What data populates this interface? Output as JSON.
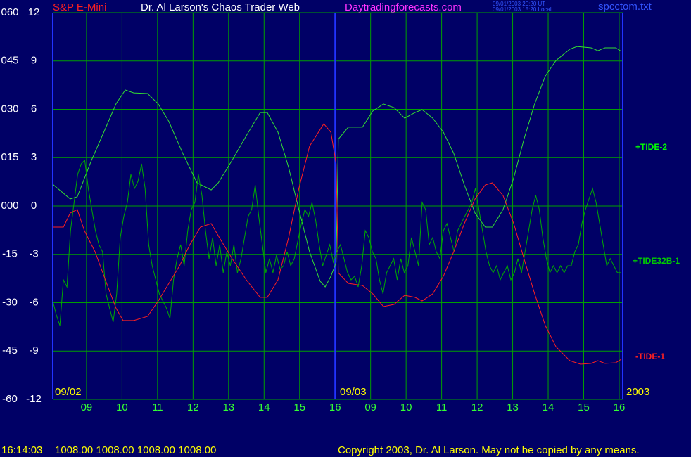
{
  "chart_data": {
    "type": "line",
    "title": "Dr. Al Larson's Chaos Trader Web",
    "subtitle": "S&P E-Mini",
    "site": "Daytradingforecasts.com",
    "timestamps": [
      "09/01/2003 20:20 UT",
      "09/01/2003 15:20 Local"
    ],
    "file": "spcctom.txt",
    "dates": [
      "09/02",
      "09/03",
      "2003"
    ],
    "status": [
      "16:14:03",
      "1008.00 1008.00 1008.00 1008.00"
    ],
    "copyright": "Copyright 2003, Dr. Al Larson. May not be copied by any means.",
    "xlim": [
      0.05,
      16.1
    ],
    "xticks": [
      {
        "value": 1,
        "label": "09"
      },
      {
        "value": 2,
        "label": "10"
      },
      {
        "value": 3,
        "label": "11"
      },
      {
        "value": 4,
        "label": "12"
      },
      {
        "value": 5,
        "label": "13"
      },
      {
        "value": 6,
        "label": "14"
      },
      {
        "value": 7,
        "label": "15"
      },
      {
        "value": 8,
        "label": "16"
      },
      {
        "value": 9,
        "label": "09"
      },
      {
        "value": 10,
        "label": "10"
      },
      {
        "value": 11,
        "label": "11"
      },
      {
        "value": 12,
        "label": "12"
      },
      {
        "value": 13,
        "label": "13"
      },
      {
        "value": 14,
        "label": "14"
      },
      {
        "value": 15,
        "label": "15"
      },
      {
        "value": 16,
        "label": "16"
      }
    ],
    "ylim": [
      -12,
      12
    ],
    "yticks": [
      12,
      9,
      6,
      3,
      0,
      -3,
      -6,
      -9,
      -12
    ],
    "y2lim": [
      -60,
      60
    ],
    "y2ticks": [
      {
        "value": 60,
        "label": "060"
      },
      {
        "value": 45,
        "label": "045"
      },
      {
        "value": 30,
        "label": "030"
      },
      {
        "value": 15,
        "label": "015"
      },
      {
        "value": 0,
        "label": "000"
      },
      -15,
      -30,
      -45,
      -60
    ],
    "grid": true,
    "series": [
      {
        "name": "+TIDE-2",
        "color": "#33dd33",
        "x": [
          0.05,
          0.54,
          0.74,
          1.14,
          1.53,
          1.83,
          2.09,
          2.33,
          2.72,
          3.02,
          3.32,
          3.71,
          4.11,
          4.51,
          4.71,
          5.1,
          5.5,
          5.89,
          6.09,
          6.39,
          6.69,
          6.98,
          7.28,
          7.58,
          7.72,
          7.88,
          8.03,
          8.09,
          8.37,
          8.77,
          9.06,
          9.36,
          9.66,
          9.96,
          10.25,
          10.45,
          10.75,
          11.05,
          11.34,
          11.64,
          11.94,
          12.23,
          12.43,
          12.73,
          13.03,
          13.32,
          13.62,
          13.92,
          14.22,
          14.61,
          14.81,
          15.21,
          15.4,
          15.6,
          15.9,
          16.06
        ],
        "values": [
          1.35,
          0.44,
          0.57,
          2.84,
          4.8,
          6.33,
          7.2,
          7.02,
          6.98,
          6.33,
          5.24,
          3.27,
          1.44,
          1.0,
          1.44,
          2.84,
          4.36,
          5.8,
          5.8,
          4.58,
          2.4,
          -0.22,
          -2.84,
          -4.67,
          -5.02,
          -4.36,
          -3.5,
          4.15,
          4.89,
          4.89,
          5.89,
          6.33,
          6.11,
          5.45,
          5.8,
          5.98,
          5.45,
          4.58,
          3.27,
          1.31,
          -0.44,
          -1.31,
          -1.31,
          -0.22,
          1.75,
          4.15,
          6.33,
          8.07,
          9.03,
          9.73,
          9.9,
          9.82,
          9.64,
          9.82,
          9.82,
          9.6
        ]
      },
      {
        "name": "+TIDE32B-1",
        "color": "#00aa00",
        "x": [
          0.05,
          0.15,
          0.25,
          0.35,
          0.45,
          0.55,
          0.65,
          0.75,
          0.85,
          0.95,
          1.05,
          1.15,
          1.25,
          1.35,
          1.45,
          1.55,
          1.65,
          1.75,
          1.85,
          1.95,
          2.05,
          2.15,
          2.25,
          2.35,
          2.45,
          2.55,
          2.65,
          2.75,
          2.85,
          2.95,
          3.05,
          3.15,
          3.25,
          3.35,
          3.45,
          3.55,
          3.65,
          3.75,
          3.85,
          3.95,
          4.05,
          4.15,
          4.25,
          4.35,
          4.45,
          4.55,
          4.65,
          4.75,
          4.85,
          4.95,
          5.05,
          5.15,
          5.25,
          5.35,
          5.45,
          5.55,
          5.65,
          5.75,
          5.85,
          5.95,
          6.05,
          6.15,
          6.25,
          6.35,
          6.45,
          6.55,
          6.65,
          6.75,
          6.85,
          6.95,
          7.05,
          7.15,
          7.25,
          7.35,
          7.45,
          7.55,
          7.65,
          7.75,
          7.85,
          7.95,
          8.05,
          8.15,
          8.25,
          8.35,
          8.45,
          8.55,
          8.65,
          8.75,
          8.85,
          8.95,
          9.05,
          9.15,
          9.25,
          9.35,
          9.45,
          9.55,
          9.65,
          9.75,
          9.85,
          9.95,
          10.05,
          10.15,
          10.25,
          10.35,
          10.45,
          10.55,
          10.65,
          10.75,
          10.85,
          10.95,
          11.05,
          11.15,
          11.25,
          11.35,
          11.45,
          11.55,
          11.65,
          11.75,
          11.85,
          11.95,
          12.05,
          12.15,
          12.25,
          12.35,
          12.45,
          12.55,
          12.65,
          12.75,
          12.85,
          12.95,
          13.05,
          13.15,
          13.25,
          13.35,
          13.45,
          13.55,
          13.65,
          13.75,
          13.85,
          13.95,
          14.05,
          14.15,
          14.25,
          14.35,
          14.45,
          14.55,
          14.65,
          14.75,
          14.85,
          14.95,
          15.05,
          15.15,
          15.25,
          15.35,
          15.45,
          15.55,
          15.65,
          15.75,
          15.85,
          15.95,
          16.05
        ],
        "values": [
          -5.89,
          -6.76,
          -7.42,
          -4.58,
          -5.02,
          -1.53,
          0.22,
          1.96,
          2.62,
          2.84,
          1.09,
          -0.22,
          -1.53,
          -2.4,
          -2.84,
          -5.45,
          -6.33,
          -7.2,
          -5.45,
          -1.96,
          -0.65,
          0.22,
          1.96,
          1.09,
          1.53,
          2.62,
          1.09,
          -2.4,
          -3.71,
          -4.58,
          -5.45,
          -5.89,
          -6.33,
          -6.98,
          -4.58,
          -3.27,
          -2.4,
          -3.71,
          -1.53,
          -0.22,
          0.22,
          1.96,
          0.65,
          -1.53,
          -3.27,
          -1.96,
          -3.71,
          -2.4,
          -4.14,
          -2.84,
          -3.71,
          -2.4,
          -4.14,
          -3.27,
          -1.96,
          -0.65,
          -0.22,
          1.31,
          -0.65,
          -2.4,
          -4.14,
          -3.27,
          -4.14,
          -3.05,
          -3.93,
          -3.71,
          -2.84,
          -3.71,
          -3.27,
          -2.18,
          -1.09,
          -0.22,
          -0.65,
          0.22,
          -0.87,
          -2.4,
          -3.71,
          -3.05,
          -2.4,
          -3.49,
          -2.84,
          -2.4,
          -3.27,
          -4.14,
          -4.58,
          -4.36,
          -5.02,
          -3.71,
          -1.53,
          -1.96,
          -2.84,
          -3.27,
          -4.58,
          -5.45,
          -4.14,
          -3.71,
          -3.27,
          -4.58,
          -3.27,
          -4.14,
          -3.71,
          -1.96,
          -2.84,
          -3.71,
          0.22,
          -0.22,
          -2.4,
          -1.96,
          -2.84,
          -3.27,
          -1.53,
          -1.09,
          -1.96,
          -2.84,
          -1.53,
          -1.09,
          -0.65,
          -0.22,
          0.22,
          1.09,
          -0.22,
          -1.53,
          -2.84,
          -3.71,
          -4.14,
          -3.71,
          -4.58,
          -4.14,
          -3.71,
          -4.58,
          -4.14,
          -3.27,
          -4.14,
          -2.84,
          -1.53,
          -0.22,
          0.65,
          -0.22,
          -1.96,
          -3.27,
          -4.14,
          -3.71,
          -4.14,
          -3.71,
          -4.14,
          -3.71,
          -3.71,
          -2.84,
          -2.4,
          -1.09,
          -0.22,
          0.44,
          1.09,
          0.22,
          -1.09,
          -2.4,
          -3.71,
          -3.27,
          -3.71,
          -4.14,
          -4.14
        ]
      },
      {
        "name": "-TIDE-1",
        "color": "#ff2020",
        "x": [
          0.05,
          0.35,
          0.54,
          0.74,
          0.94,
          1.24,
          1.53,
          1.83,
          2.03,
          2.33,
          2.72,
          3.02,
          3.32,
          3.62,
          3.91,
          4.21,
          4.51,
          4.8,
          5.1,
          5.5,
          5.89,
          6.09,
          6.39,
          6.69,
          6.98,
          7.28,
          7.68,
          7.88,
          8.03,
          8.09,
          8.37,
          8.77,
          9.06,
          9.36,
          9.66,
          9.96,
          10.25,
          10.45,
          10.75,
          11.05,
          11.34,
          11.64,
          11.94,
          12.23,
          12.43,
          12.73,
          13.03,
          13.32,
          13.62,
          13.92,
          14.22,
          14.61,
          14.91,
          15.21,
          15.4,
          15.6,
          15.9,
          16.06
        ],
        "values": [
          -1.31,
          -1.31,
          -0.44,
          -0.22,
          -1.53,
          -2.84,
          -4.58,
          -6.33,
          -7.11,
          -7.11,
          -6.85,
          -5.89,
          -4.8,
          -3.71,
          -2.4,
          -1.31,
          -1.09,
          -2.18,
          -3.27,
          -4.58,
          -5.67,
          -5.67,
          -4.58,
          -1.96,
          1.09,
          3.71,
          5.1,
          4.58,
          2.62,
          -4.15,
          -4.8,
          -4.93,
          -5.45,
          -6.24,
          -6.11,
          -5.54,
          -5.67,
          -5.89,
          -5.45,
          -4.36,
          -2.84,
          -1.09,
          0.44,
          1.31,
          1.44,
          0.65,
          -1.09,
          -3.27,
          -5.45,
          -7.42,
          -8.73,
          -9.6,
          -9.82,
          -9.77,
          -9.6,
          -9.77,
          -9.73,
          -9.51
        ]
      }
    ]
  }
}
